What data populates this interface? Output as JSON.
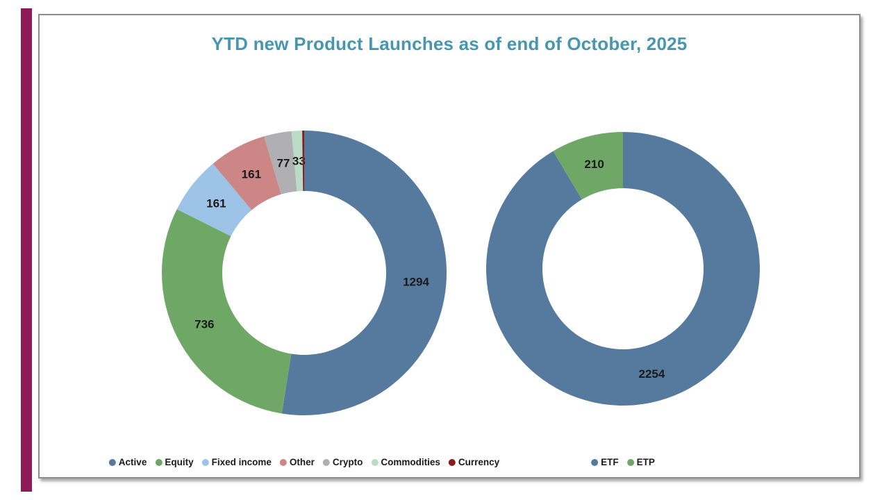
{
  "page": {
    "title": "YTD new Product Launches as of end of October, 2025",
    "title_color": "#4696B2",
    "accent_bar_color": "#8C1B56"
  },
  "chart_data": [
    {
      "type": "donut",
      "name": "ytd-launches-by-asset-class",
      "title": "",
      "total": 2464,
      "start_angle_deg": 0,
      "direction": "clockwise",
      "legend_position": "bottom",
      "slices": [
        {
          "label": "Active",
          "value": 1294,
          "value_label": "1294",
          "color": "#557A9D"
        },
        {
          "label": "Equity",
          "value": 736,
          "value_label": "736",
          "color": "#6FA766"
        },
        {
          "label": "Fixed income",
          "value": 161,
          "value_label": "161",
          "color": "#9DC3E6"
        },
        {
          "label": "Other",
          "value": 161,
          "value_label": "161",
          "color": "#CC8686"
        },
        {
          "label": "Crypto",
          "value": 77,
          "value_label": "77",
          "color": "#B0B0B2"
        },
        {
          "label": "Commodities",
          "value": 33,
          "value_label": "33",
          "color": "#BADCC6"
        },
        {
          "label": "Currency",
          "value": 2,
          "value_label": "",
          "color": "#8B1C1C",
          "estimated": true
        }
      ]
    },
    {
      "type": "donut",
      "name": "ytd-launches-by-wrapper",
      "title": "",
      "total": 2464,
      "start_angle_deg": 0,
      "direction": "clockwise",
      "legend_position": "bottom",
      "slices": [
        {
          "label": "ETF",
          "value": 2254,
          "value_label": "2254",
          "color": "#557A9D"
        },
        {
          "label": "ETP",
          "value": 210,
          "value_label": "210",
          "color": "#6FA766"
        }
      ]
    }
  ]
}
